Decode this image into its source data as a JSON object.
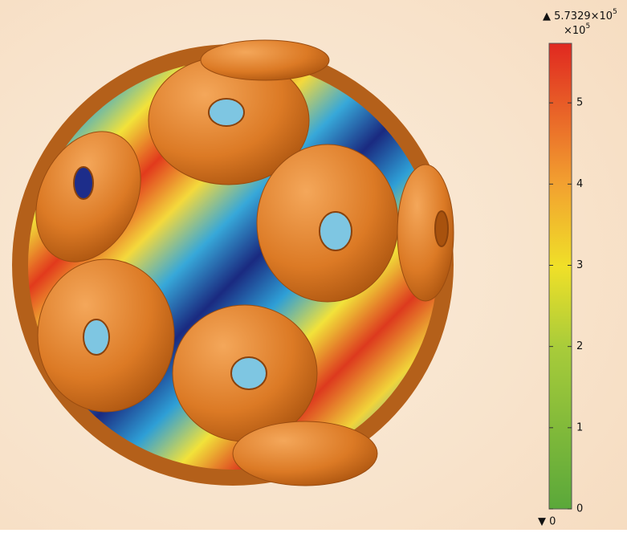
{
  "colorbar": {
    "max_label": "▲ 5.7329×10",
    "max_exponent": "5",
    "multiplier": "×10",
    "multiplier_exponent": "5",
    "min_label": "▼ 0",
    "lim": [
      0,
      5.7329
    ],
    "ticks": [
      0,
      1,
      2,
      3,
      4,
      5
    ]
  }
}
